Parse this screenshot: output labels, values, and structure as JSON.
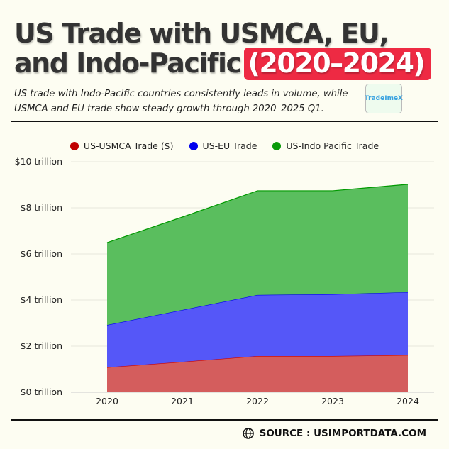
{
  "header": {
    "title_main": "US Trade with USMCA, EU, and Indo-Pacific",
    "title_highlight": "(2020–2024)",
    "subtitle": "US trade with Indo-Pacific countries consistently leads in volume, while USMCA and EU trade show steady growth through 2020–2025 Q1.",
    "logo_text": "TradeImeX",
    "highlight_color": "#ee2a43"
  },
  "footer": {
    "source": "SOURCE : USIMPORTDATA.COM",
    "icon": "globe-icon"
  },
  "chart_data": {
    "type": "area",
    "stacked": true,
    "categories": [
      "2020",
      "2021",
      "2022",
      "2023",
      "2024"
    ],
    "ylim": [
      0,
      10
    ],
    "yticks": [
      0,
      2,
      4,
      6,
      8,
      10
    ],
    "ytick_labels": [
      "$0 trillion",
      "$2 trillion",
      "$4 trillion",
      "$6 trillion",
      "$8 trillion",
      "$10 trillion"
    ],
    "grid": true,
    "legend_placement": "top",
    "series": [
      {
        "name": "US-USMCA Trade ($)",
        "color": "#cc0000",
        "fill": "#d45d5d",
        "values": [
          1.08,
          1.32,
          1.57,
          1.57,
          1.61
        ]
      },
      {
        "name": "US-EU Trade",
        "color": "#0000ee",
        "fill": "#5557f8",
        "values": [
          1.84,
          2.25,
          2.65,
          2.68,
          2.73
        ]
      },
      {
        "name": "US-Indo Pacific Trade",
        "color": "#009900",
        "fill": "#5abe5e",
        "values": [
          3.57,
          4.03,
          4.52,
          4.49,
          4.68
        ]
      }
    ]
  }
}
